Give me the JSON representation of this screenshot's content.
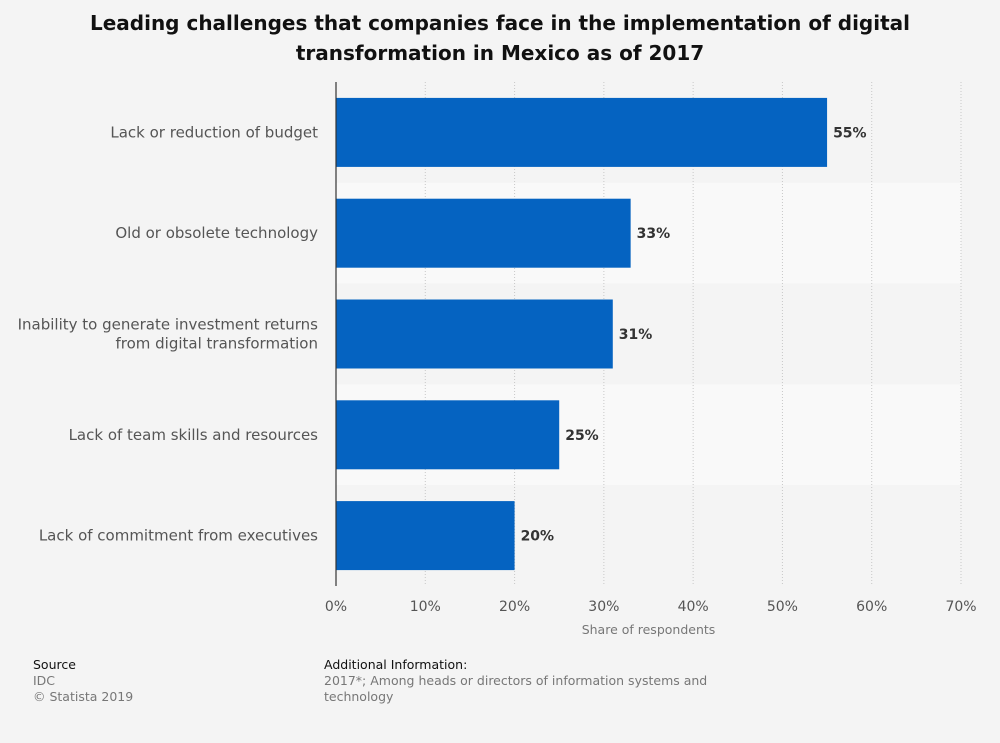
{
  "title_line1": "Leading challenges that companies face in the implementation of digital",
  "title_line2": "transformation in Mexico as of 2017",
  "chart_data": {
    "type": "bar",
    "orientation": "horizontal",
    "categories": [
      [
        "Lack or reduction of budget"
      ],
      [
        "Old or obsolete technology"
      ],
      [
        "Inability to generate investment returns",
        "from digital transformation"
      ],
      [
        "Lack of team skills and resources"
      ],
      [
        "Lack of commitment from executives"
      ]
    ],
    "values": [
      55,
      33,
      31,
      25,
      20
    ],
    "value_labels": [
      "55%",
      "33%",
      "31%",
      "25%",
      "20%"
    ],
    "xlim": [
      0,
      70
    ],
    "ticks": [
      0,
      10,
      20,
      30,
      40,
      50,
      60,
      70
    ],
    "tick_labels": [
      "0%",
      "10%",
      "20%",
      "30%",
      "40%",
      "50%",
      "60%",
      "70%"
    ],
    "xlabel": "Share of respondents",
    "bar_color": "#0563c1",
    "grid": true
  },
  "footer": {
    "source_heading": "Source",
    "source_name": "IDC",
    "copyright": "© Statista 2019",
    "additional_heading": "Additional Information:",
    "additional_line1": "2017*; Among heads or directors of information systems and",
    "additional_line2": "technology"
  }
}
